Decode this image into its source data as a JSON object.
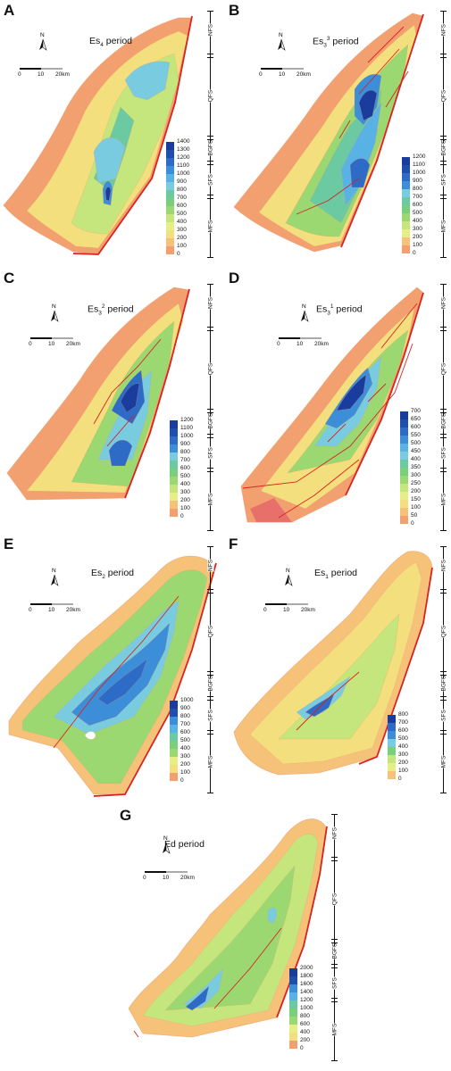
{
  "panels": [
    {
      "letter": "A",
      "period_main": "Es",
      "period_script": "4",
      "script_type": "sub",
      "period_suffix": " period"
    },
    {
      "letter": "B",
      "period_main": "Es",
      "period_script": "3",
      "script_sub": "3",
      "script_type": "supsub",
      "period_suffix": " period"
    },
    {
      "letter": "C",
      "period_main": "Es",
      "period_script": "2",
      "script_sub": "3",
      "script_type": "supsub",
      "period_suffix": " period"
    },
    {
      "letter": "D",
      "period_main": "Es",
      "period_script": "1",
      "script_sub": "3",
      "script_type": "supsub",
      "period_suffix": " period"
    },
    {
      "letter": "E",
      "period_main": "Es",
      "period_script": "2",
      "script_type": "sub",
      "period_suffix": " period"
    },
    {
      "letter": "F",
      "period_main": "Es",
      "period_script": "1",
      "script_type": "sub",
      "period_suffix": " period"
    },
    {
      "letter": "G",
      "period_main": "Ed period",
      "period_script": "",
      "script_type": "none",
      "period_suffix": ""
    }
  ],
  "north_label": "N",
  "scale_labels": [
    "0",
    "10",
    "20km"
  ],
  "strat_labels": [
    "NFS",
    "QFS",
    "BGFS",
    "SFS",
    "MFS"
  ],
  "legends": [
    {
      "panel": "A",
      "values": [
        "1400",
        "1300",
        "1200",
        "1100",
        "1000",
        "900",
        "800",
        "700",
        "600",
        "500",
        "400",
        "300",
        "200",
        "100",
        "0"
      ]
    },
    {
      "panel": "B",
      "values": [
        "1200",
        "1100",
        "1000",
        "900",
        "800",
        "700",
        "600",
        "500",
        "400",
        "300",
        "200",
        "100",
        "0"
      ]
    },
    {
      "panel": "C",
      "values": [
        "1200",
        "1100",
        "1000",
        "900",
        "800",
        "700",
        "600",
        "500",
        "400",
        "300",
        "200",
        "100",
        "0"
      ]
    },
    {
      "panel": "D",
      "values": [
        "700",
        "650",
        "600",
        "550",
        "500",
        "450",
        "400",
        "350",
        "300",
        "250",
        "200",
        "150",
        "100",
        "50",
        "0"
      ]
    },
    {
      "panel": "E",
      "values": [
        "1000",
        "900",
        "800",
        "700",
        "600",
        "500",
        "400",
        "300",
        "200",
        "100",
        "0"
      ]
    },
    {
      "panel": "F",
      "values": [
        "800",
        "700",
        "600",
        "500",
        "400",
        "300",
        "200",
        "100",
        "0"
      ]
    },
    {
      "panel": "G",
      "values": [
        "2000",
        "1800",
        "1600",
        "1400",
        "1200",
        "1000",
        "800",
        "600",
        "400",
        "200",
        "0"
      ]
    }
  ],
  "colors": {
    "high": "#1a3c9c",
    "mid_blue": "#3f86d8",
    "cyan": "#7fd0e6",
    "green": "#92d46a",
    "yellow": "#f1ea7d",
    "orange": "#f6b878",
    "low": "#e8706b",
    "fault": "#d9231f"
  }
}
